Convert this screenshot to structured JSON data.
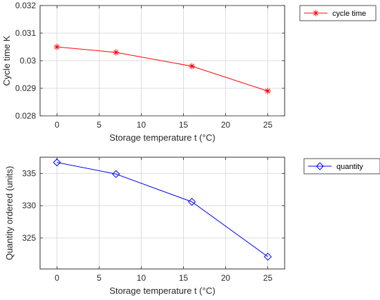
{
  "chart_data": [
    {
      "type": "line",
      "xlabel": "Storage temperature t (°C)",
      "ylabel": "Cycle time K",
      "xlim": [
        -2,
        27
      ],
      "ylim": [
        0.028,
        0.032
      ],
      "x_ticks": [
        0,
        5,
        10,
        15,
        20,
        25
      ],
      "y_ticks": [
        0.028,
        0.029,
        0.03,
        0.031,
        0.032
      ],
      "y_tick_labels": [
        "0.028",
        "0.029",
        "0.03",
        "0.031",
        "0.032"
      ],
      "grid": true,
      "legend_position": "outside-right-top",
      "series": [
        {
          "name": "cycle time",
          "color": "#ff0000",
          "marker": "asterisk",
          "x": [
            0,
            7,
            16,
            25
          ],
          "y": [
            0.0305,
            0.0303,
            0.0298,
            0.0289
          ]
        }
      ]
    },
    {
      "type": "line",
      "xlabel": "Storage temperature t (°C)",
      "ylabel": "Quantity ordered (units)",
      "xlim": [
        -2,
        27
      ],
      "ylim": [
        320.2,
        337.5
      ],
      "x_ticks": [
        0,
        5,
        10,
        15,
        20,
        25
      ],
      "y_ticks": [
        325,
        330,
        335
      ],
      "y_tick_labels": [
        "325",
        "330",
        "335"
      ],
      "grid": true,
      "legend_position": "outside-right-top",
      "series": [
        {
          "name": "quantity",
          "color": "#0000ff",
          "marker": "diamond",
          "x": [
            0,
            7,
            16,
            25
          ],
          "y": [
            336.7,
            334.9,
            330.6,
            322.1
          ]
        }
      ]
    }
  ]
}
